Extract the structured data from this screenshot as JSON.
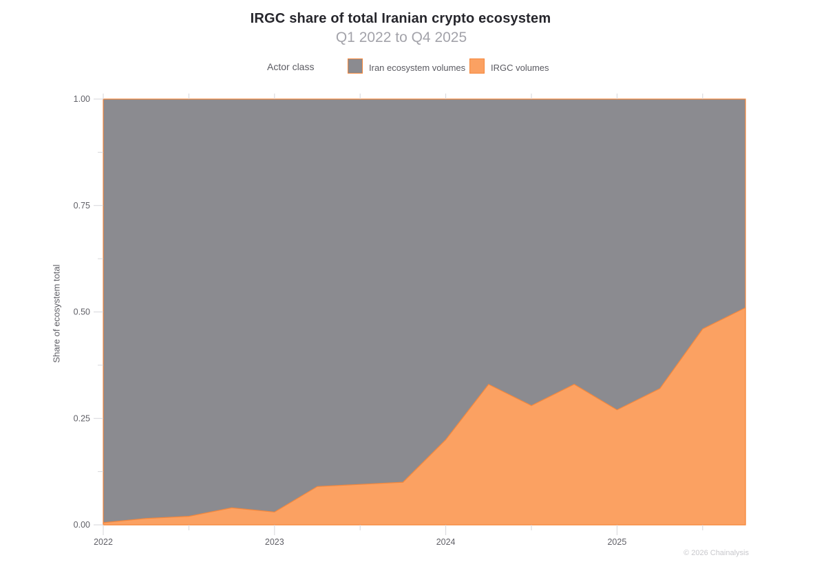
{
  "header": {
    "title": "IRGC share of total Iranian crypto ecosystem",
    "subtitle": "Q1 2022 to Q4 2025"
  },
  "legend": {
    "label": "Actor class",
    "position": "top",
    "items": [
      {
        "label": "Iran ecosystem volumes",
        "color": "#8B8B90",
        "border": "#F5873B"
      },
      {
        "label": "IRGC volumes",
        "color": "#FBA162",
        "border": "#F5873B"
      }
    ]
  },
  "footer": {
    "credit": "© 2026 Chainalysis"
  },
  "colors": {
    "gray_fill": "#8B8B90",
    "orange_fill": "#FBA162",
    "area_stroke": "#F5873B",
    "tick": "#d6d6da",
    "axis_text": "#5f5f66"
  },
  "chart_data": {
    "type": "area",
    "stacked": true,
    "title": "IRGC share of total Iranian crypto ecosystem",
    "subtitle": "Q1 2022 to Q4 2025",
    "xlabel": "",
    "ylabel": "Share of ecosystem total",
    "ylim": [
      0,
      1
    ],
    "grid": false,
    "legend_position": "top",
    "categories": [
      "Q1 2022",
      "Q2 2022",
      "Q3 2022",
      "Q4 2022",
      "Q1 2023",
      "Q2 2023",
      "Q3 2023",
      "Q4 2023",
      "Q1 2024",
      "Q2 2024",
      "Q3 2024",
      "Q4 2024",
      "Q1 2025",
      "Q2 2025",
      "Q3 2025",
      "Q4 2025"
    ],
    "series": [
      {
        "name": "IRGC volumes",
        "color": "#FBA162",
        "values": [
          0.005,
          0.015,
          0.02,
          0.04,
          0.03,
          0.09,
          0.095,
          0.1,
          0.2,
          0.33,
          0.28,
          0.33,
          0.27,
          0.32,
          0.46,
          0.51
        ]
      },
      {
        "name": "Iran ecosystem volumes",
        "color": "#8B8B90",
        "values": [
          0.995,
          0.985,
          0.98,
          0.96,
          0.97,
          0.91,
          0.905,
          0.9,
          0.8,
          0.67,
          0.72,
          0.67,
          0.73,
          0.68,
          0.54,
          0.49
        ]
      }
    ],
    "y_ticks": [
      0,
      0.25,
      0.5,
      0.75,
      1
    ],
    "y_tick_labels": [
      "0.00",
      "0.25",
      "0.50",
      "0.75",
      "1.00"
    ],
    "y_minor_ticks": [
      0.125,
      0.375,
      0.625,
      0.875
    ],
    "x_tick_labels": [
      "2022",
      "2023",
      "2024",
      "2025"
    ]
  }
}
